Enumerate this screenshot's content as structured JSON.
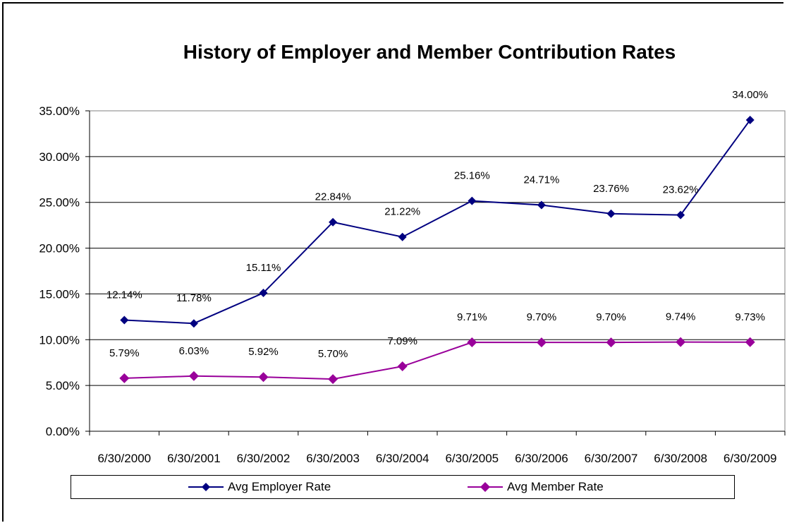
{
  "chart_data": {
    "type": "line",
    "title": "History of Employer and Member Contribution Rates",
    "categories": [
      "6/30/2000",
      "6/30/2001",
      "6/30/2002",
      "6/30/2003",
      "6/30/2004",
      "6/30/2005",
      "6/30/2006",
      "6/30/2007",
      "6/30/2008",
      "6/30/2009"
    ],
    "series": [
      {
        "name": "Avg Employer Rate",
        "color": "#000080",
        "marker": "diamond",
        "values": [
          12.14,
          11.78,
          15.11,
          22.84,
          21.22,
          25.16,
          24.71,
          23.76,
          23.62,
          34.0
        ],
        "labels": [
          "12.14%",
          "11.78%",
          "15.11%",
          "22.84%",
          "21.22%",
          "25.16%",
          "24.71%",
          "23.76%",
          "23.62%",
          "34.00%"
        ]
      },
      {
        "name": "Avg Member Rate",
        "color": "#99009a",
        "marker": "diamond",
        "values": [
          5.79,
          6.03,
          5.92,
          5.7,
          7.09,
          9.71,
          9.7,
          9.7,
          9.74,
          9.73
        ],
        "labels": [
          "5.79%",
          "6.03%",
          "5.92%",
          "5.70%",
          "7.09%",
          "9.71%",
          "9.70%",
          "9.70%",
          "9.74%",
          "9.73%"
        ]
      }
    ],
    "yticks": [
      "0.00%",
      "5.00%",
      "10.00%",
      "15.00%",
      "20.00%",
      "25.00%",
      "30.00%",
      "35.00%"
    ],
    "ylim": [
      0,
      35
    ],
    "ystep": 5,
    "grid": true,
    "legend_position": "bottom"
  }
}
